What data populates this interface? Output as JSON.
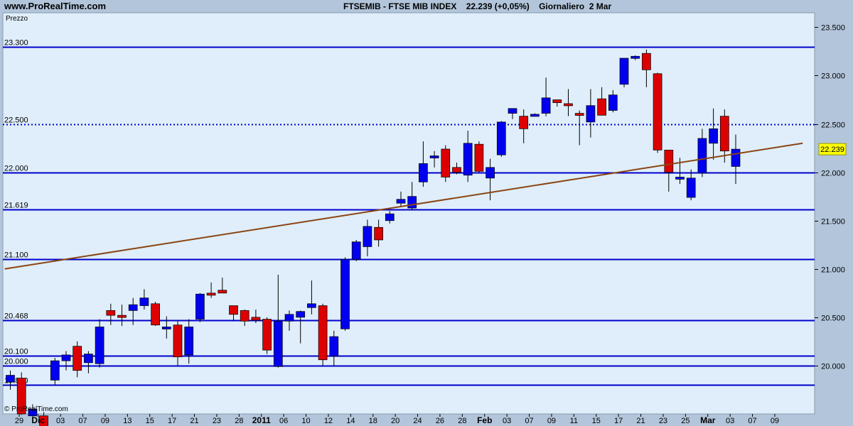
{
  "header": {
    "site": "www.ProRealTime.com",
    "instrument": "FTSEMIB - FTSE MIB INDEX",
    "last": "22.239 (+0,05%)",
    "period": "Giornaliero  2 Mar"
  },
  "panel_label": "Prezzo",
  "copyright": "© ProRealTime.com",
  "last_price_badge": "22.239",
  "colors": {
    "up": "#0000ee",
    "down": "#dd0000",
    "line": "#0000cc",
    "trend": "#8b4513",
    "background": "#dfeefa",
    "badge": "#ffff00"
  },
  "chart_data": {
    "type": "candlestick",
    "title": "FTSEMIB - FTSE MIB INDEX",
    "ylim": [
      19500,
      23650
    ],
    "y_ticks": [
      "20.000",
      "20.500",
      "21.000",
      "21.500",
      "22.000",
      "22.500",
      "23.000",
      "23.500"
    ],
    "y_tick_values": [
      20000,
      20500,
      21000,
      21500,
      22000,
      22500,
      23000,
      23500
    ],
    "x_tick_labels": [
      "29",
      "Dic",
      "03",
      "07",
      "09",
      "13",
      "15",
      "17",
      "21",
      "23",
      "28",
      "2011",
      "06",
      "10",
      "12",
      "14",
      "18",
      "20",
      "24",
      "26",
      "28",
      "Feb",
      "03",
      "07",
      "09",
      "11",
      "15",
      "17",
      "21",
      "23",
      "25",
      "Mar",
      "03",
      "07",
      "09"
    ],
    "x_tick_slots": [
      0.8,
      2.5,
      4.5,
      6.5,
      8.5,
      10.5,
      12.5,
      14.5,
      16.5,
      18.5,
      20.5,
      22.5,
      24.5,
      26.5,
      28.5,
      30.5,
      32.5,
      34.5,
      36.5,
      38.5,
      40.5,
      42.5,
      44.5,
      46.5,
      48.5,
      50.5,
      52.5,
      54.5,
      56.5,
      58.5,
      60.5,
      62.5,
      64.5,
      66.5,
      68.5
    ],
    "bold_ticks": [
      "Dic",
      "2011",
      "Feb",
      "Mar"
    ],
    "horizontal_levels": [
      {
        "value": 23300,
        "label": "23.300",
        "style": "solid"
      },
      {
        "value": 22500,
        "label": "22.500",
        "style": "dotted"
      },
      {
        "value": 22000,
        "label": "22.000",
        "style": "solid"
      },
      {
        "value": 21619,
        "label": "21.619",
        "style": "solid"
      },
      {
        "value": 21100,
        "label": "21.100",
        "style": "solid"
      },
      {
        "value": 20468,
        "label": "20.468",
        "style": "solid"
      },
      {
        "value": 20100,
        "label": "20.100",
        "style": "solid"
      },
      {
        "value": 20000,
        "label": "20.000",
        "style": "solid"
      },
      {
        "value": 19800,
        "label": "19.800",
        "style": "solid"
      }
    ],
    "trendline": [
      {
        "slot": -0.5,
        "value": 21000
      },
      {
        "slot": 71.0,
        "value": 22300
      }
    ],
    "candles": [
      {
        "o": 19830,
        "h": 19950,
        "l": 19750,
        "c": 19900
      },
      {
        "o": 19870,
        "h": 19930,
        "l": 19490,
        "c": 19500
      },
      {
        "o": 19480,
        "h": 19600,
        "l": 19450,
        "c": 19550
      },
      {
        "o": 19480,
        "h": 19520,
        "l": 19300,
        "c": 19350
      },
      {
        "o": 19850,
        "h": 20080,
        "l": 19800,
        "c": 20050
      },
      {
        "o": 20050,
        "h": 20150,
        "l": 19950,
        "c": 20110
      },
      {
        "o": 20200,
        "h": 20250,
        "l": 19880,
        "c": 19950
      },
      {
        "o": 20030,
        "h": 20150,
        "l": 19920,
        "c": 20120
      },
      {
        "o": 20020,
        "h": 20480,
        "l": 19980,
        "c": 20400
      },
      {
        "o": 20570,
        "h": 20640,
        "l": 20420,
        "c": 20520
      },
      {
        "o": 20520,
        "h": 20630,
        "l": 20410,
        "c": 20510
      },
      {
        "o": 20570,
        "h": 20700,
        "l": 20420,
        "c": 20630
      },
      {
        "o": 20620,
        "h": 20790,
        "l": 20580,
        "c": 20700
      },
      {
        "o": 20640,
        "h": 20660,
        "l": 20410,
        "c": 20420
      },
      {
        "o": 20380,
        "h": 20510,
        "l": 20280,
        "c": 20400
      },
      {
        "o": 20420,
        "h": 20460,
        "l": 20000,
        "c": 20090
      },
      {
        "o": 20110,
        "h": 20480,
        "l": 20020,
        "c": 20400
      },
      {
        "o": 20480,
        "h": 20750,
        "l": 20450,
        "c": 20740
      },
      {
        "o": 20750,
        "h": 20860,
        "l": 20700,
        "c": 20740
      },
      {
        "o": 20780,
        "h": 20910,
        "l": 20760,
        "c": 20750
      },
      {
        "o": 20620,
        "h": 20620,
        "l": 20460,
        "c": 20530
      },
      {
        "o": 20570,
        "h": 20580,
        "l": 20410,
        "c": 20460
      },
      {
        "o": 20500,
        "h": 20580,
        "l": 20440,
        "c": 20470
      },
      {
        "o": 20480,
        "h": 20500,
        "l": 20120,
        "c": 20160
      },
      {
        "o": 19990,
        "h": 20940,
        "l": 19980,
        "c": 20460
      },
      {
        "o": 20460,
        "h": 20570,
        "l": 20360,
        "c": 20530
      },
      {
        "o": 20500,
        "h": 20570,
        "l": 20230,
        "c": 20560
      },
      {
        "o": 20600,
        "h": 20880,
        "l": 20530,
        "c": 20640
      },
      {
        "o": 20620,
        "h": 20640,
        "l": 20000,
        "c": 20060
      },
      {
        "o": 20100,
        "h": 20360,
        "l": 20000,
        "c": 20300
      },
      {
        "o": 20380,
        "h": 21120,
        "l": 20360,
        "c": 21100
      },
      {
        "o": 21100,
        "h": 21300,
        "l": 21080,
        "c": 21280
      },
      {
        "o": 21230,
        "h": 21510,
        "l": 21130,
        "c": 21440
      },
      {
        "o": 21430,
        "h": 21510,
        "l": 21230,
        "c": 21300
      },
      {
        "o": 21500,
        "h": 21600,
        "l": 21470,
        "c": 21570
      },
      {
        "o": 21680,
        "h": 21800,
        "l": 21640,
        "c": 21720
      },
      {
        "o": 21630,
        "h": 21900,
        "l": 21610,
        "c": 21750
      },
      {
        "o": 21900,
        "h": 22320,
        "l": 21850,
        "c": 22090
      },
      {
        "o": 22150,
        "h": 22220,
        "l": 22050,
        "c": 22170
      },
      {
        "o": 22240,
        "h": 22280,
        "l": 21900,
        "c": 21950
      },
      {
        "o": 22050,
        "h": 22100,
        "l": 21980,
        "c": 22000
      },
      {
        "o": 21970,
        "h": 22430,
        "l": 21900,
        "c": 22300
      },
      {
        "o": 22290,
        "h": 22320,
        "l": 22000,
        "c": 22010
      },
      {
        "o": 21940,
        "h": 22140,
        "l": 21710,
        "c": 22050
      },
      {
        "o": 22180,
        "h": 22530,
        "l": 22160,
        "c": 22520
      },
      {
        "o": 22610,
        "h": 22640,
        "l": 22550,
        "c": 22660
      },
      {
        "o": 22580,
        "h": 22650,
        "l": 22300,
        "c": 22450
      },
      {
        "o": 22600,
        "h": 22610,
        "l": 22590,
        "c": 22600
      },
      {
        "o": 22610,
        "h": 22980,
        "l": 22580,
        "c": 22770
      },
      {
        "o": 22750,
        "h": 22750,
        "l": 22680,
        "c": 22720
      },
      {
        "o": 22710,
        "h": 22860,
        "l": 22580,
        "c": 22690
      },
      {
        "o": 22610,
        "h": 22640,
        "l": 22280,
        "c": 22600
      },
      {
        "o": 22520,
        "h": 22860,
        "l": 22360,
        "c": 22690
      },
      {
        "o": 22760,
        "h": 22880,
        "l": 22620,
        "c": 22590
      },
      {
        "o": 22640,
        "h": 22850,
        "l": 22620,
        "c": 22800
      },
      {
        "o": 22910,
        "h": 23180,
        "l": 22880,
        "c": 23180
      },
      {
        "o": 23200,
        "h": 23210,
        "l": 23160,
        "c": 23200
      },
      {
        "o": 23230,
        "h": 23270,
        "l": 22880,
        "c": 23060
      },
      {
        "o": 23020,
        "h": 23030,
        "l": 22200,
        "c": 22230
      },
      {
        "o": 22230,
        "h": 22230,
        "l": 21800,
        "c": 22000
      },
      {
        "o": 21950,
        "h": 22150,
        "l": 21880,
        "c": 21950
      },
      {
        "o": 21740,
        "h": 22030,
        "l": 21710,
        "c": 21940
      },
      {
        "o": 21990,
        "h": 22450,
        "l": 21950,
        "c": 22350
      },
      {
        "o": 22300,
        "h": 22660,
        "l": 22130,
        "c": 22450
      },
      {
        "o": 22580,
        "h": 22650,
        "l": 22100,
        "c": 22220
      },
      {
        "o": 22060,
        "h": 22390,
        "l": 21880,
        "c": 22239
      }
    ]
  }
}
